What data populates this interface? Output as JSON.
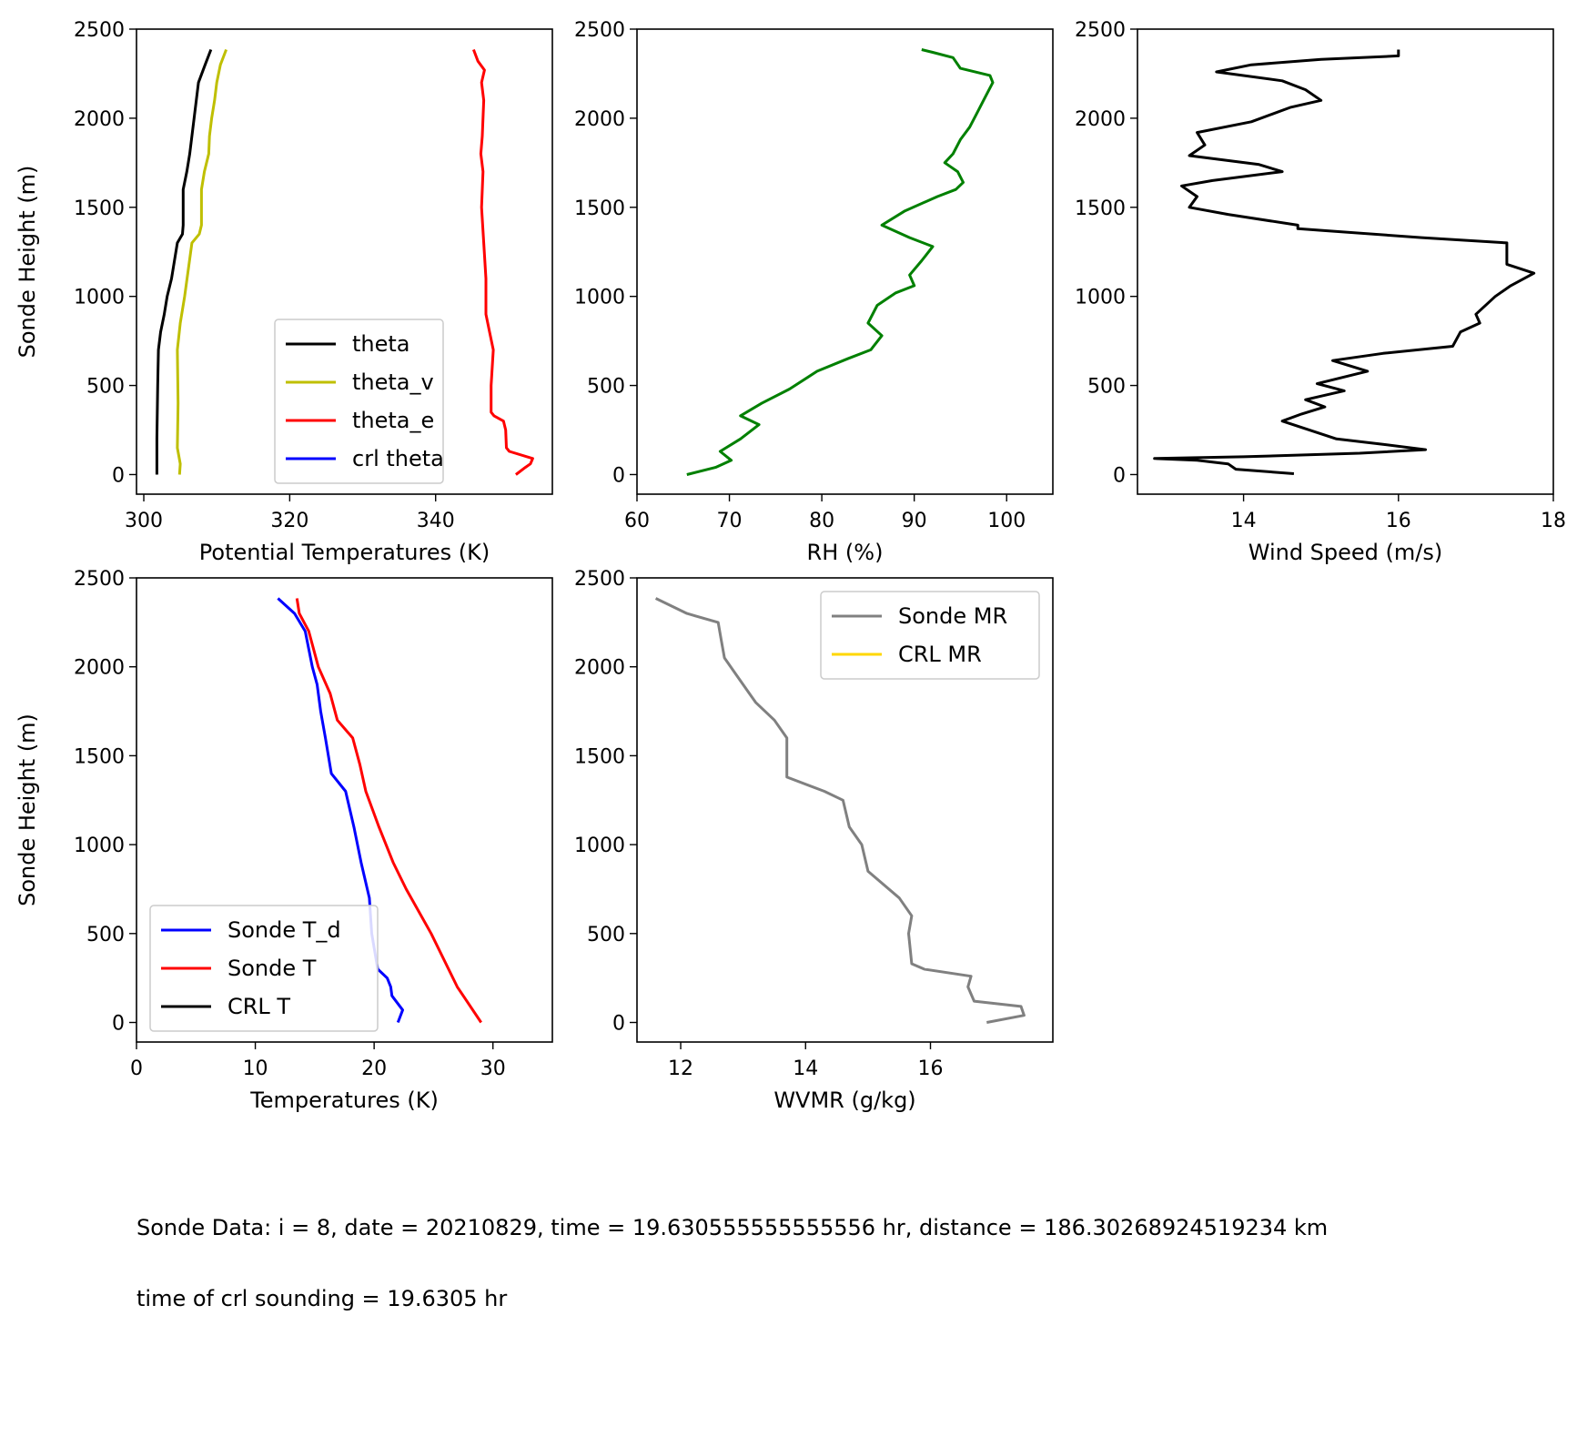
{
  "chart_data": [
    {
      "id": "theta",
      "type": "line",
      "xlabel": "Potential Temperatures (K)",
      "ylabel": "Sonde Height (m)",
      "xlim": [
        299,
        356
      ],
      "ylim": [
        -110,
        2500
      ],
      "xticks": [
        300,
        320,
        340
      ],
      "yticks": [
        0,
        500,
        1000,
        1500,
        2000,
        2500
      ],
      "legend": "lower-right",
      "series": [
        {
          "name": "theta",
          "color": "#000000",
          "points": [
            [
              301.8,
              0
            ],
            [
              301.8,
              200
            ],
            [
              301.9,
              500
            ],
            [
              302.0,
              700
            ],
            [
              302.3,
              800
            ],
            [
              302.8,
              900
            ],
            [
              303.2,
              1000
            ],
            [
              303.8,
              1100
            ],
            [
              304.2,
              1200
            ],
            [
              304.6,
              1300
            ],
            [
              305.3,
              1350
            ],
            [
              305.4,
              1400
            ],
            [
              305.4,
              1500
            ],
            [
              305.4,
              1600
            ],
            [
              305.9,
              1700
            ],
            [
              306.3,
              1800
            ],
            [
              306.6,
              1900
            ],
            [
              306.9,
              2000
            ],
            [
              307.2,
              2100
            ],
            [
              307.5,
              2200
            ],
            [
              308.4,
              2300
            ],
            [
              309.2,
              2385
            ]
          ]
        },
        {
          "name": "theta_v",
          "color": "#bfbf00",
          "points": [
            [
              304.9,
              0
            ],
            [
              305.0,
              60
            ],
            [
              304.6,
              150
            ],
            [
              304.7,
              400
            ],
            [
              304.6,
              700
            ],
            [
              305.0,
              850
            ],
            [
              305.6,
              1000
            ],
            [
              306.1,
              1150
            ],
            [
              306.6,
              1300
            ],
            [
              307.6,
              1350
            ],
            [
              307.9,
              1400
            ],
            [
              307.9,
              1500
            ],
            [
              307.9,
              1600
            ],
            [
              308.3,
              1700
            ],
            [
              308.9,
              1800
            ],
            [
              309.0,
              1900
            ],
            [
              309.3,
              2000
            ],
            [
              309.7,
              2100
            ],
            [
              310.0,
              2200
            ],
            [
              310.5,
              2300
            ],
            [
              311.3,
              2385
            ]
          ]
        },
        {
          "name": "theta_e",
          "color": "#ff0000",
          "points": [
            [
              351.0,
              0
            ],
            [
              352.3,
              40
            ],
            [
              353.0,
              60
            ],
            [
              353.3,
              90
            ],
            [
              350.1,
              130
            ],
            [
              349.7,
              150
            ],
            [
              349.6,
              250
            ],
            [
              349.3,
              300
            ],
            [
              348.0,
              330
            ],
            [
              347.6,
              350
            ],
            [
              347.6,
              500
            ],
            [
              347.9,
              700
            ],
            [
              347.4,
              800
            ],
            [
              346.9,
              900
            ],
            [
              346.9,
              1100
            ],
            [
              346.6,
              1300
            ],
            [
              346.3,
              1500
            ],
            [
              346.5,
              1700
            ],
            [
              346.2,
              1800
            ],
            [
              346.4,
              1900
            ],
            [
              346.6,
              2100
            ],
            [
              346.3,
              2200
            ],
            [
              346.7,
              2270
            ],
            [
              345.8,
              2320
            ],
            [
              345.2,
              2385
            ]
          ]
        },
        {
          "name": "crl theta",
          "color": "#0000ff",
          "points": []
        }
      ]
    },
    {
      "id": "rh",
      "type": "line",
      "xlabel": "RH (%)",
      "ylabel": "",
      "xlim": [
        60,
        105
      ],
      "ylim": [
        -110,
        2500
      ],
      "xticks": [
        60,
        70,
        80,
        90,
        100
      ],
      "yticks": [
        0,
        500,
        1000,
        1500,
        2000,
        2500
      ],
      "legend": "none",
      "series": [
        {
          "name": "",
          "color": "#008000",
          "points": [
            [
              65.4,
              0
            ],
            [
              68.5,
              40
            ],
            [
              70.2,
              80
            ],
            [
              69.0,
              130
            ],
            [
              71.2,
              200
            ],
            [
              73.2,
              280
            ],
            [
              71.2,
              330
            ],
            [
              73.5,
              400
            ],
            [
              76.5,
              480
            ],
            [
              79.5,
              580
            ],
            [
              82.8,
              650
            ],
            [
              85.3,
              700
            ],
            [
              86.5,
              780
            ],
            [
              85.0,
              850
            ],
            [
              86.0,
              950
            ],
            [
              88.0,
              1020
            ],
            [
              90.0,
              1060
            ],
            [
              89.5,
              1120
            ],
            [
              90.8,
              1200
            ],
            [
              92.0,
              1280
            ],
            [
              89.5,
              1330
            ],
            [
              86.5,
              1400
            ],
            [
              89.0,
              1480
            ],
            [
              92.5,
              1560
            ],
            [
              94.5,
              1600
            ],
            [
              95.3,
              1640
            ],
            [
              94.7,
              1700
            ],
            [
              93.3,
              1750
            ],
            [
              94.2,
              1800
            ],
            [
              95.0,
              1880
            ],
            [
              96.0,
              1950
            ],
            [
              97.0,
              2050
            ],
            [
              97.5,
              2100
            ],
            [
              98.5,
              2200
            ],
            [
              98.2,
              2240
            ],
            [
              95.0,
              2280
            ],
            [
              94.2,
              2340
            ],
            [
              92.0,
              2370
            ],
            [
              90.8,
              2385
            ]
          ]
        }
      ]
    },
    {
      "id": "wind",
      "type": "line",
      "xlabel": "Wind Speed (m/s)",
      "ylabel": "",
      "xlim": [
        12.63,
        18.0
      ],
      "ylim": [
        -110,
        2500
      ],
      "xticks": [
        14,
        16,
        18
      ],
      "yticks": [
        0,
        500,
        1000,
        1500,
        2000,
        2500
      ],
      "legend": "none",
      "series": [
        {
          "name": "",
          "color": "#000000",
          "points": [
            [
              14.65,
              5
            ],
            [
              13.9,
              30
            ],
            [
              13.8,
              60
            ],
            [
              13.4,
              80
            ],
            [
              12.85,
              90
            ],
            [
              14.0,
              100
            ],
            [
              15.5,
              120
            ],
            [
              16.35,
              140
            ],
            [
              15.8,
              170
            ],
            [
              15.2,
              200
            ],
            [
              14.5,
              300
            ],
            [
              14.75,
              340
            ],
            [
              15.05,
              380
            ],
            [
              14.8,
              420
            ],
            [
              15.3,
              470
            ],
            [
              14.95,
              510
            ],
            [
              15.6,
              580
            ],
            [
              15.15,
              640
            ],
            [
              15.8,
              680
            ],
            [
              16.7,
              720
            ],
            [
              16.8,
              800
            ],
            [
              17.05,
              850
            ],
            [
              17.0,
              900
            ],
            [
              17.25,
              1000
            ],
            [
              17.45,
              1060
            ],
            [
              17.75,
              1130
            ],
            [
              17.4,
              1180
            ],
            [
              17.4,
              1300
            ],
            [
              16.3,
              1330
            ],
            [
              14.7,
              1380
            ],
            [
              14.7,
              1400
            ],
            [
              13.8,
              1460
            ],
            [
              13.3,
              1500
            ],
            [
              13.4,
              1560
            ],
            [
              13.2,
              1620
            ],
            [
              13.6,
              1650
            ],
            [
              14.5,
              1700
            ],
            [
              14.2,
              1740
            ],
            [
              13.3,
              1790
            ],
            [
              13.5,
              1850
            ],
            [
              13.4,
              1920
            ],
            [
              14.1,
              1980
            ],
            [
              14.6,
              2060
            ],
            [
              15.0,
              2100
            ],
            [
              14.8,
              2160
            ],
            [
              14.5,
              2210
            ],
            [
              13.65,
              2260
            ],
            [
              14.1,
              2300
            ],
            [
              15.0,
              2330
            ],
            [
              16.0,
              2350
            ],
            [
              16.0,
              2385
            ]
          ]
        }
      ]
    },
    {
      "id": "temp",
      "type": "line",
      "xlabel": "Temperatures (K)",
      "ylabel": "Sonde Height (m)",
      "xlim": [
        0,
        35
      ],
      "ylim": [
        -110,
        2500
      ],
      "xticks": [
        0,
        10,
        20,
        30
      ],
      "yticks": [
        0,
        500,
        1000,
        1500,
        2000,
        2500
      ],
      "legend": "lower-left",
      "series": [
        {
          "name": "Sonde T_d",
          "color": "#0000ff",
          "points": [
            [
              22.0,
              0
            ],
            [
              22.4,
              70
            ],
            [
              21.5,
              150
            ],
            [
              21.4,
              200
            ],
            [
              21.1,
              250
            ],
            [
              20.3,
              300
            ],
            [
              19.8,
              500
            ],
            [
              19.6,
              700
            ],
            [
              18.9,
              900
            ],
            [
              18.3,
              1100
            ],
            [
              17.6,
              1300
            ],
            [
              16.4,
              1400
            ],
            [
              15.9,
              1600
            ],
            [
              15.5,
              1750
            ],
            [
              15.2,
              1900
            ],
            [
              14.8,
              2000
            ],
            [
              14.2,
              2200
            ],
            [
              13.3,
              2300
            ],
            [
              11.9,
              2385
            ]
          ]
        },
        {
          "name": "Sonde T",
          "color": "#ff0000",
          "points": [
            [
              29.0,
              0
            ],
            [
              27.0,
              200
            ],
            [
              24.8,
              500
            ],
            [
              22.7,
              750
            ],
            [
              21.6,
              900
            ],
            [
              20.4,
              1100
            ],
            [
              19.3,
              1300
            ],
            [
              18.8,
              1450
            ],
            [
              18.2,
              1600
            ],
            [
              16.9,
              1700
            ],
            [
              16.3,
              1850
            ],
            [
              15.3,
              2000
            ],
            [
              14.5,
              2200
            ],
            [
              13.7,
              2300
            ],
            [
              13.5,
              2385
            ]
          ]
        },
        {
          "name": "CRL T",
          "color": "#000000",
          "points": []
        }
      ]
    },
    {
      "id": "wvmr",
      "type": "line",
      "xlabel": "WVMR (g/kg)",
      "ylabel": "",
      "xlim": [
        11.3,
        17.96
      ],
      "ylim": [
        -110,
        2500
      ],
      "xticks": [
        12,
        14,
        16
      ],
      "yticks": [
        0,
        500,
        1000,
        1500,
        2000,
        2500
      ],
      "legend": "top-right",
      "series": [
        {
          "name": "Sonde MR",
          "color": "#808080",
          "points": [
            [
              16.9,
              0
            ],
            [
              17.5,
              40
            ],
            [
              17.45,
              90
            ],
            [
              16.7,
              120
            ],
            [
              16.6,
              200
            ],
            [
              16.65,
              260
            ],
            [
              15.9,
              300
            ],
            [
              15.7,
              330
            ],
            [
              15.65,
              500
            ],
            [
              15.7,
              600
            ],
            [
              15.5,
              700
            ],
            [
              15.0,
              850
            ],
            [
              14.9,
              1000
            ],
            [
              14.7,
              1100
            ],
            [
              14.6,
              1250
            ],
            [
              14.3,
              1300
            ],
            [
              13.7,
              1380
            ],
            [
              13.7,
              1500
            ],
            [
              13.7,
              1600
            ],
            [
              13.5,
              1700
            ],
            [
              13.2,
              1800
            ],
            [
              13.1,
              1850
            ],
            [
              12.9,
              1950
            ],
            [
              12.7,
              2050
            ],
            [
              12.65,
              2150
            ],
            [
              12.6,
              2250
            ],
            [
              12.1,
              2300
            ],
            [
              11.6,
              2385
            ]
          ]
        },
        {
          "name": "CRL MR",
          "color": "#ffd700",
          "points": []
        }
      ]
    }
  ],
  "captions": {
    "line1": "Sonde Data: i = 8, date = 20210829, time = 19.630555555555556 hr, distance = 186.30268924519234 km",
    "line2": "time of crl sounding = 19.6305 hr"
  }
}
